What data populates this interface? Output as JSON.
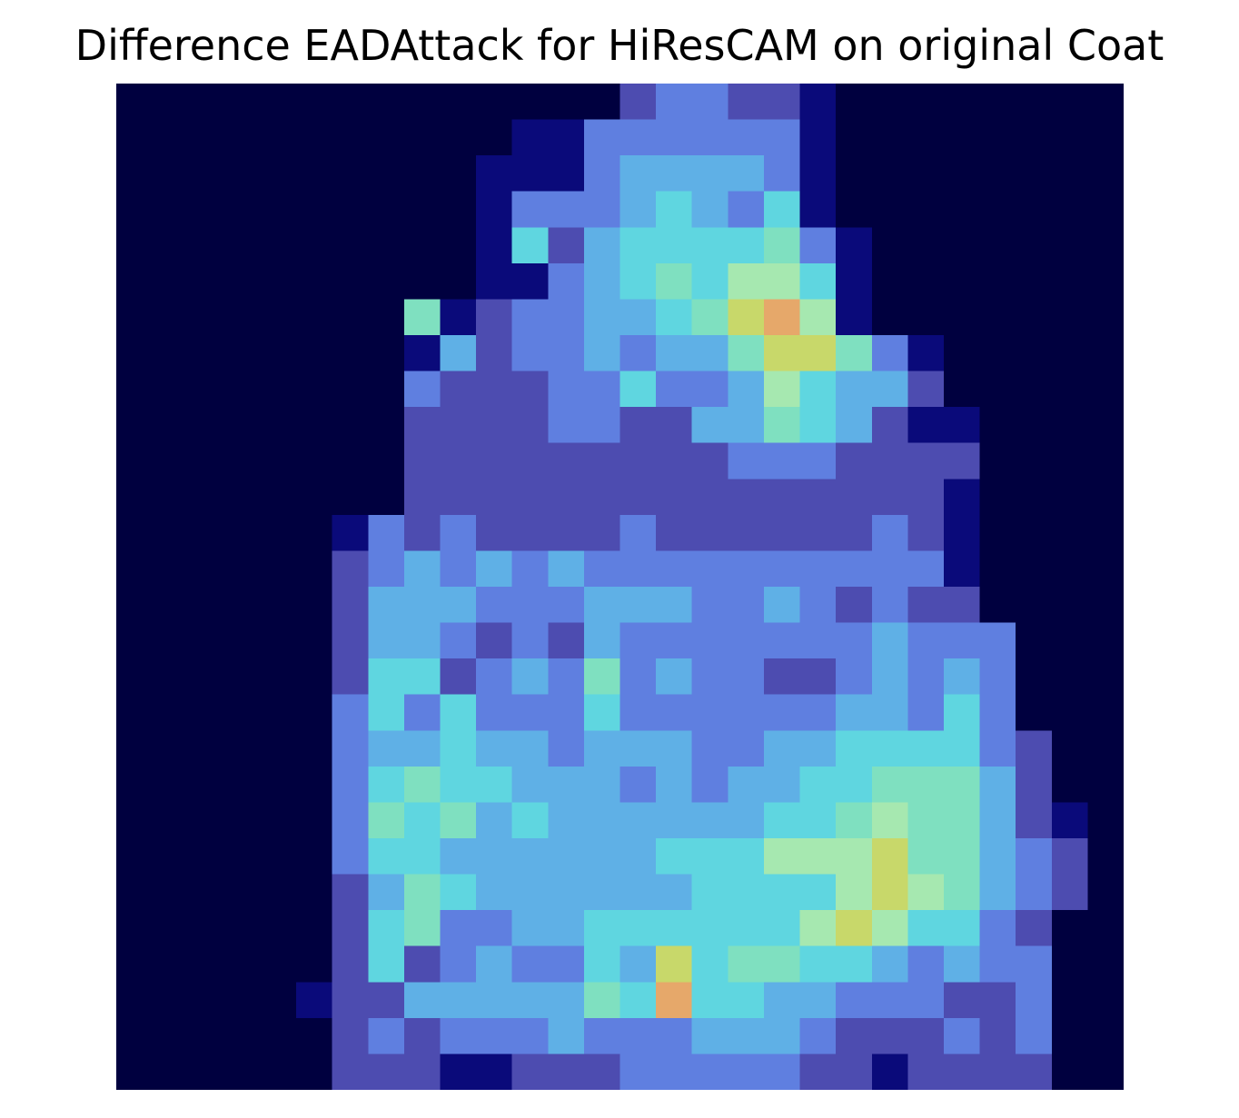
{
  "figure": {
    "title": "Difference EADAttack for HiResCAM on original Coat"
  },
  "image": {
    "description_name": "coat-heatmap-overlay",
    "grid_size": 28,
    "colormap": "jet-blended",
    "intensity_rows": [
      "0000000000000023322100000000",
      "0000000000011333333100000000",
      "0000000000111344443100000000",
      "0000000000133345435100000000",
      "0000000000152455556310000000",
      "0000000000113456577510000000",
      "0000000061233445689710000000",
      "0000000014233434468863100000",
      "0000000032223353347544200000",
      "0000000022223322446542110000",
      "0000000022222222233322220000",
      "0000000022222222222222210000",
      "0000001323222232222223210000",
      "0000002343434333333333310000",
      "0000002444333444334323220000",
      "0000002443232433333334333000",
      "0000002552343634332234343000",
      "0000003535333533333344353000",
      "0000003445443444334455553200",
      "0000003565544434344556664200",
      "0000003656454444445567664210",
      "0000003554444445557778664320",
      "0000002465444444555578764320",
      "0000002563344555555787553200",
      "0000002523433548566554343300",
      "0000012244444659554433322300",
      "0000002323334333444322232300",
      "0000002221122233333221222200"
    ]
  }
}
